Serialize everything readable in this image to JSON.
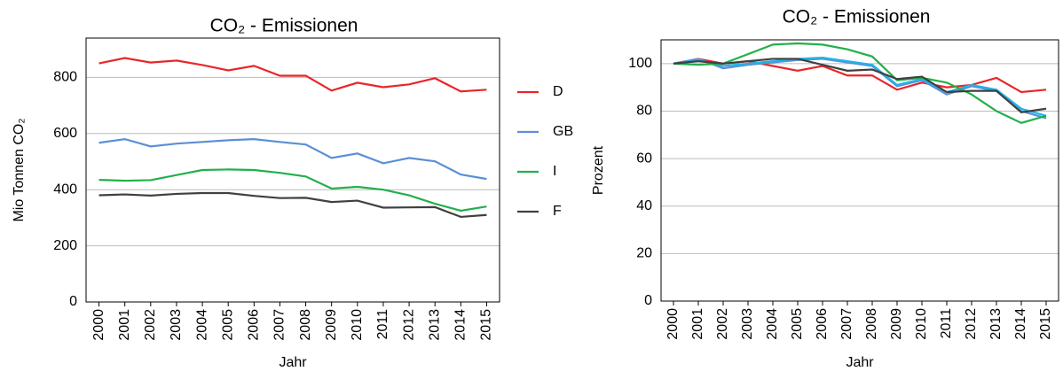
{
  "chart_data": [
    {
      "type": "line",
      "title": "CO₂ - Emissionen",
      "x_label": "Jahr",
      "y_label": "Mio Tonnen CO₂",
      "categories": [
        "2000",
        "2001",
        "2002",
        "2003",
        "2004",
        "2005",
        "2006",
        "2007",
        "2008",
        "2009",
        "2010",
        "2011",
        "2012",
        "2013",
        "2014",
        "2015"
      ],
      "ylim": [
        0,
        940
      ],
      "yticks": [
        0,
        200,
        400,
        600,
        800
      ],
      "grid": true,
      "legend": "right",
      "series": [
        {
          "name": "D",
          "color": "#e8262a",
          "values": [
            850,
            869,
            853,
            860,
            844,
            825,
            841,
            806,
            806,
            753,
            781,
            765,
            775,
            797,
            750,
            756
          ]
        },
        {
          "name": "GB",
          "color": "#5b8fd6",
          "values": [
            567,
            580,
            554,
            564,
            570,
            576,
            580,
            570,
            561,
            513,
            529,
            494,
            513,
            501,
            454,
            438
          ]
        },
        {
          "name": "I",
          "color": "#22b04b",
          "values": [
            435,
            432,
            434,
            452,
            470,
            472,
            470,
            460,
            447,
            404,
            410,
            400,
            380,
            350,
            325,
            340
          ]
        },
        {
          "name": "F",
          "color": "#404040",
          "values": [
            380,
            383,
            379,
            385,
            388,
            388,
            378,
            370,
            371,
            356,
            361,
            336,
            337,
            338,
            303,
            310
          ]
        }
      ]
    },
    {
      "type": "line",
      "title": "CO₂ - Emissionen",
      "x_label": "Jahr",
      "y_label": "Prozent",
      "categories": [
        "2000",
        "2001",
        "2002",
        "2003",
        "2004",
        "2005",
        "2006",
        "2007",
        "2008",
        "2009",
        "2010",
        "2011",
        "2012",
        "2013",
        "2014",
        "2015"
      ],
      "ylim": [
        0,
        110
      ],
      "yticks": [
        0,
        20,
        40,
        60,
        80,
        100
      ],
      "grid": true,
      "series": [
        {
          "color": "#e8262a",
          "values": [
            100,
            102,
            100,
            101,
            99,
            97,
            99,
            95,
            95,
            89,
            92,
            90,
            91,
            94,
            88,
            89
          ]
        },
        {
          "color": "#5b8fd6",
          "values": [
            100,
            102,
            98,
            99.5,
            100.5,
            101.5,
            102,
            100.5,
            99,
            90.5,
            93,
            87,
            90.5,
            88.5,
            80,
            77
          ]
        },
        {
          "color": "#1fb4e8",
          "values": [
            100,
            101.5,
            99,
            100,
            101,
            102,
            102.5,
            101,
            99.5,
            91,
            93.5,
            88,
            91,
            89,
            81,
            78
          ]
        },
        {
          "color": "#22b04b",
          "values": [
            100,
            99.5,
            100,
            104,
            108,
            108.5,
            108,
            106,
            103,
            93,
            94,
            92,
            87,
            80,
            75,
            78
          ]
        },
        {
          "color": "#404040",
          "values": [
            100,
            101,
            100,
            101,
            102,
            102,
            99.5,
            97,
            97.5,
            93.5,
            94.5,
            88,
            88.5,
            88.5,
            79.5,
            81
          ]
        }
      ]
    }
  ]
}
